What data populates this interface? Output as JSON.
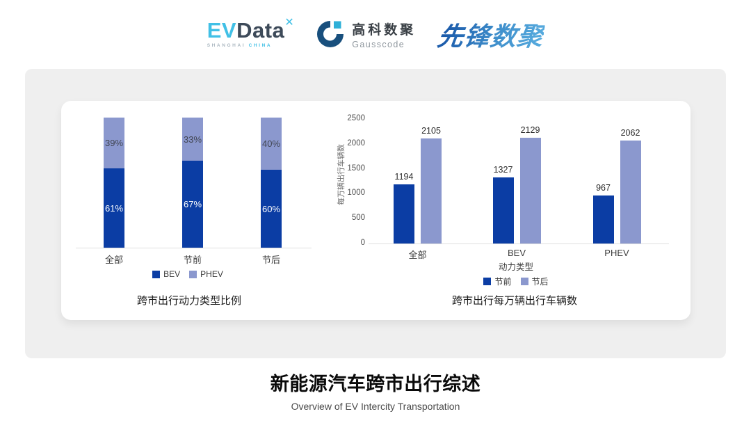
{
  "header": {
    "evdata_logo": {
      "ev": "EV",
      "data": "Data",
      "spark": "✕",
      "sub_left": "SHANGHAI",
      "sub_right": "CHINA"
    },
    "gausscode_logo": {
      "cn": "高科数聚",
      "en": "Gausscode"
    },
    "pioneer_logo": {
      "text": "先锋数聚"
    }
  },
  "footer": {
    "title": "新能源汽车跨市出行综述",
    "subtitle": "Overview of EV Intercity Transportation"
  },
  "colors": {
    "bev_dark_blue": "#0b3da4",
    "phev_light_blue": "#8b98ce",
    "card_bg": "#efefef",
    "axis_line": "#dedede"
  },
  "chart_data": [
    {
      "type": "bar",
      "variant": "stacked-percent",
      "title": "跨市出行动力类型比例",
      "categories": [
        "全部",
        "节前",
        "节后"
      ],
      "series": [
        {
          "name": "BEV",
          "color": "#0b3da4",
          "values": [
            61,
            67,
            60
          ],
          "unit": "%"
        },
        {
          "name": "PHEV",
          "color": "#8b98ce",
          "values": [
            39,
            33,
            40
          ],
          "unit": "%"
        }
      ],
      "ylim": [
        0,
        100
      ],
      "grid": false,
      "legend_position": "bottom"
    },
    {
      "type": "bar",
      "variant": "grouped",
      "title": "跨市出行每万辆出行车辆数",
      "categories": [
        "全部",
        "BEV",
        "PHEV"
      ],
      "xlabel": "动力类型",
      "ylabel": "每万辆出行车辆数",
      "series": [
        {
          "name": "节前",
          "color": "#0b3da4",
          "values": [
            1194,
            1327,
            967
          ]
        },
        {
          "name": "节后",
          "color": "#8b98ce",
          "values": [
            2105,
            2129,
            2062
          ]
        }
      ],
      "ylim": [
        0,
        2500
      ],
      "yticks": [
        0,
        500,
        1000,
        1500,
        2000,
        2500
      ],
      "grid": false,
      "legend_position": "bottom"
    }
  ]
}
